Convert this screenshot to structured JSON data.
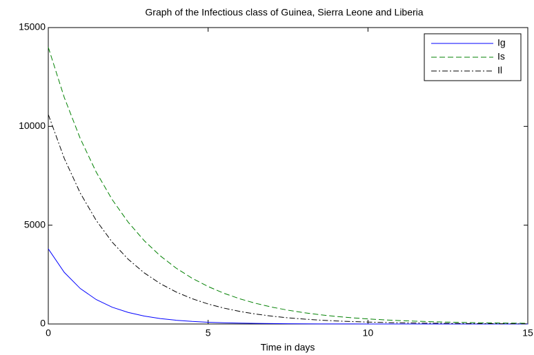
{
  "chart_data": {
    "type": "line",
    "title": "Graph of the Infectious class of Guinea, Sierra Leone and Liberia",
    "x_label": "Time in days",
    "x": [
      0,
      0.5,
      1,
      1.5,
      2,
      2.5,
      3,
      3.5,
      4,
      4.5,
      5,
      5.5,
      6,
      6.5,
      7,
      7.5,
      8,
      8.5,
      9,
      9.5,
      10,
      10.5,
      11,
      11.5,
      12,
      12.5,
      13,
      13.5,
      14,
      14.5,
      15
    ],
    "series": [
      {
        "name": "Ig",
        "color": "#0000ff",
        "dash": "solid",
        "values": [
          3800,
          2612,
          1795,
          1234,
          848,
          583,
          401,
          275,
          189,
          130,
          89,
          61,
          42,
          29,
          20,
          14,
          9,
          6,
          4,
          3,
          2,
          1,
          1,
          1,
          0,
          0,
          0,
          0,
          0,
          0,
          0
        ]
      },
      {
        "name": "Is",
        "color": "#008000",
        "dash": "dashed",
        "values": [
          14000,
          11462,
          9384,
          7683,
          6291,
          5150,
          4217,
          3452,
          2826,
          2314,
          1895,
          1551,
          1270,
          1040,
          851,
          697,
          571,
          467,
          383,
          313,
          256,
          210,
          172,
          141,
          115,
          94,
          77,
          63,
          52,
          42,
          35
        ]
      },
      {
        "name": "Il",
        "color": "#000000",
        "dash": "dashdot",
        "values": [
          10600,
          8380,
          6625,
          5238,
          4141,
          3274,
          2588,
          2046,
          1618,
          1279,
          1011,
          800,
          632,
          500,
          395,
          312,
          247,
          195,
          154,
          122,
          97,
          76,
          60,
          48,
          38,
          30,
          24,
          19,
          15,
          12,
          9
        ]
      }
    ],
    "xlim": [
      0,
      15
    ],
    "xticks": [
      0,
      5,
      10,
      15
    ],
    "ylim": [
      0,
      15000
    ],
    "yticks": [
      0,
      5000,
      10000,
      15000
    ],
    "grid": false,
    "legend": "northeast"
  }
}
